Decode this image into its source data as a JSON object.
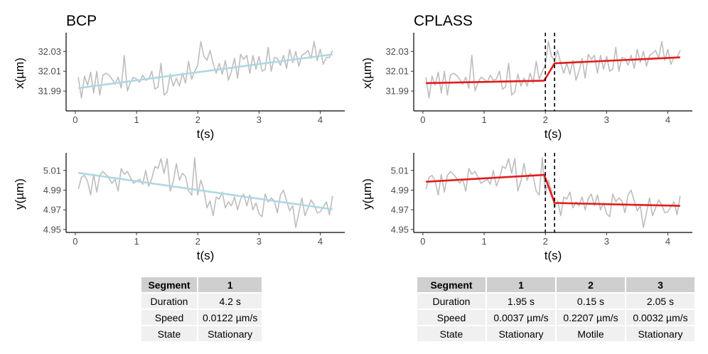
{
  "chart_data": [
    {
      "type": "line",
      "panel": "BCP",
      "title": "BCP",
      "xlabel": "t(s)",
      "ylabel": "x(µm)",
      "xlim": [
        -0.15,
        4.4
      ],
      "ylim": [
        31.97,
        32.046
      ],
      "xticks": [
        "0",
        "1",
        "2",
        "3",
        "4"
      ],
      "yticks": [
        "31.99",
        "32.01",
        "32.03"
      ],
      "series": [
        {
          "name": "trajectory",
          "color": "#bdbdbd",
          "x": [
            0.05,
            0.1,
            0.15,
            0.2,
            0.25,
            0.3,
            0.35,
            0.4,
            0.45,
            0.5,
            0.55,
            0.6,
            0.65,
            0.7,
            0.75,
            0.8,
            0.85,
            0.9,
            0.95,
            1.0,
            1.05,
            1.1,
            1.15,
            1.2,
            1.25,
            1.3,
            1.35,
            1.4,
            1.45,
            1.5,
            1.55,
            1.6,
            1.65,
            1.7,
            1.75,
            1.8,
            1.85,
            1.9,
            1.95,
            2.0,
            2.05,
            2.1,
            2.15,
            2.2,
            2.25,
            2.3,
            2.35,
            2.4,
            2.45,
            2.5,
            2.55,
            2.6,
            2.65,
            2.7,
            2.75,
            2.8,
            2.85,
            2.9,
            2.95,
            3.0,
            3.05,
            3.1,
            3.15,
            3.2,
            3.25,
            3.3,
            3.35,
            3.4,
            3.45,
            3.5,
            3.55,
            3.6,
            3.65,
            3.7,
            3.75,
            3.8,
            3.85,
            3.9,
            3.95,
            4.0,
            4.05,
            4.1,
            4.15,
            4.2
          ],
          "y": [
            32.004,
            31.983,
            32.005,
            31.996,
            32.009,
            31.988,
            32.01,
            31.986,
            32.006,
            32.008,
            32.006,
            32.002,
            31.997,
            32.004,
            31.993,
            32.026,
            31.99,
            31.999,
            32.004,
            32.002,
            31.999,
            32.006,
            32.001,
            32.002,
            32.01,
            31.992,
            31.994,
            32.018,
            31.986,
            31.989,
            32.007,
            31.995,
            32.003,
            31.995,
            32.008,
            31.998,
            32.02,
            32.002,
            32.01,
            32.016,
            32.04,
            32.025,
            32.021,
            32.031,
            32.018,
            32.008,
            32.018,
            32.007,
            32.021,
            32.001,
            32.01,
            32.023,
            32.003,
            32.027,
            32.022,
            32.026,
            32.008,
            32.026,
            32.012,
            32.025,
            32.01,
            32.012,
            32.034,
            32.01,
            32.024,
            32.023,
            32.016,
            32.026,
            32.013,
            32.032,
            32.019,
            32.03,
            32.015,
            32.026,
            32.028,
            32.031,
            32.023,
            32.04,
            32.021,
            32.032,
            32.017,
            32.024,
            32.024,
            32.031
          ]
        },
        {
          "name": "fit",
          "color": "#add8e6",
          "x": [
            0.05,
            4.2
          ],
          "y": [
            31.993,
            32.027
          ]
        }
      ],
      "changepoints": []
    },
    {
      "type": "line",
      "panel": "BCP",
      "xlabel": "t(s)",
      "ylabel": "y(µm)",
      "xlim": [
        -0.15,
        4.4
      ],
      "ylim": [
        4.947,
        5.025
      ],
      "xticks": [
        "0",
        "1",
        "2",
        "3",
        "4"
      ],
      "yticks": [
        "4.95",
        "4.97",
        "4.99",
        "5.01"
      ],
      "series": [
        {
          "name": "trajectory",
          "color": "#bdbdbd",
          "x": [
            0.05,
            0.1,
            0.15,
            0.2,
            0.25,
            0.3,
            0.35,
            0.4,
            0.45,
            0.5,
            0.55,
            0.6,
            0.65,
            0.7,
            0.75,
            0.8,
            0.85,
            0.9,
            0.95,
            1.0,
            1.05,
            1.1,
            1.15,
            1.2,
            1.25,
            1.3,
            1.35,
            1.4,
            1.45,
            1.5,
            1.55,
            1.6,
            1.65,
            1.7,
            1.75,
            1.8,
            1.85,
            1.9,
            1.95,
            2.0,
            2.05,
            2.1,
            2.15,
            2.2,
            2.25,
            2.3,
            2.35,
            2.4,
            2.45,
            2.5,
            2.55,
            2.6,
            2.65,
            2.7,
            2.75,
            2.8,
            2.85,
            2.9,
            2.95,
            3.0,
            3.05,
            3.1,
            3.15,
            3.2,
            3.25,
            3.3,
            3.35,
            3.4,
            3.45,
            3.5,
            3.55,
            3.6,
            3.65,
            3.7,
            3.75,
            3.8,
            3.85,
            3.9,
            3.95,
            4.0,
            4.05,
            4.1,
            4.15,
            4.2
          ],
          "y": [
            4.991,
            5.003,
            5.005,
            4.999,
            4.985,
            5.006,
            4.988,
            5.005,
            5.009,
            5.006,
            5.002,
            4.997,
            5.001,
            4.989,
            5.012,
            5.006,
            5.009,
            5.003,
            4.997,
            4.999,
            5.001,
            4.996,
            5.01,
            4.994,
            5.002,
            5.014,
            5.012,
            5.022,
            5.007,
            5.022,
            4.989,
            4.999,
            5.017,
            5.0,
            5.007,
            5.004,
            4.989,
            4.985,
            5.023,
            4.985,
            5.0,
            4.99,
            4.972,
            4.979,
            4.964,
            4.983,
            4.981,
            4.988,
            4.972,
            4.978,
            4.974,
            4.983,
            4.97,
            4.981,
            4.986,
            4.974,
            4.985,
            4.97,
            4.977,
            4.966,
            4.963,
            4.986,
            4.978,
            4.982,
            4.979,
            4.967,
            4.985,
            4.99,
            4.979,
            4.969,
            4.974,
            4.952,
            4.967,
            4.982,
            4.964,
            4.972,
            4.98,
            4.975,
            4.967,
            4.968,
            4.973,
            4.978,
            4.965,
            4.984
          ]
        },
        {
          "name": "fit",
          "color": "#add8e6",
          "x": [
            0.05,
            4.2
          ],
          "y": [
            5.0075,
            4.9705
          ]
        }
      ],
      "changepoints": []
    },
    {
      "type": "line",
      "panel": "CPLASS",
      "title": "CPLASS",
      "xlabel": "t(s)",
      "ylabel": "x(µm)",
      "xlim": [
        -0.15,
        4.4
      ],
      "ylim": [
        31.97,
        32.046
      ],
      "xticks": [
        "0",
        "1",
        "2",
        "3",
        "4"
      ],
      "yticks": [
        "31.99",
        "32.01",
        "32.03"
      ],
      "series": [
        {
          "name": "trajectory",
          "color": "#bdbdbd",
          "x": [
            0.05,
            0.1,
            0.15,
            0.2,
            0.25,
            0.3,
            0.35,
            0.4,
            0.45,
            0.5,
            0.55,
            0.6,
            0.65,
            0.7,
            0.75,
            0.8,
            0.85,
            0.9,
            0.95,
            1.0,
            1.05,
            1.1,
            1.15,
            1.2,
            1.25,
            1.3,
            1.35,
            1.4,
            1.45,
            1.5,
            1.55,
            1.6,
            1.65,
            1.7,
            1.75,
            1.8,
            1.85,
            1.9,
            1.95,
            2.0,
            2.05,
            2.1,
            2.15,
            2.2,
            2.25,
            2.3,
            2.35,
            2.4,
            2.45,
            2.5,
            2.55,
            2.6,
            2.65,
            2.7,
            2.75,
            2.8,
            2.85,
            2.9,
            2.95,
            3.0,
            3.05,
            3.1,
            3.15,
            3.2,
            3.25,
            3.3,
            3.35,
            3.4,
            3.45,
            3.5,
            3.55,
            3.6,
            3.65,
            3.7,
            3.75,
            3.8,
            3.85,
            3.9,
            3.95,
            4.0,
            4.05,
            4.1,
            4.15,
            4.2
          ],
          "y": [
            32.004,
            31.983,
            32.005,
            31.996,
            32.009,
            31.988,
            32.01,
            31.986,
            32.006,
            32.008,
            32.006,
            32.002,
            31.997,
            32.004,
            31.993,
            32.026,
            31.99,
            31.999,
            32.004,
            32.002,
            31.999,
            32.006,
            32.001,
            32.002,
            32.01,
            31.992,
            31.994,
            32.018,
            31.986,
            31.989,
            32.007,
            31.995,
            32.003,
            31.995,
            32.008,
            31.998,
            32.02,
            32.002,
            32.01,
            32.016,
            32.04,
            32.025,
            32.021,
            32.031,
            32.018,
            32.008,
            32.018,
            32.007,
            32.021,
            32.001,
            32.01,
            32.023,
            32.003,
            32.027,
            32.022,
            32.026,
            32.008,
            32.026,
            32.012,
            32.025,
            32.01,
            32.012,
            32.034,
            32.01,
            32.024,
            32.023,
            32.016,
            32.026,
            32.013,
            32.032,
            32.019,
            32.03,
            32.015,
            32.026,
            32.028,
            32.031,
            32.023,
            32.04,
            32.021,
            32.032,
            32.017,
            32.024,
            32.024,
            32.031
          ]
        },
        {
          "name": "fit",
          "color": "#e41a1c",
          "x": [
            0.05,
            1.98,
            2.15,
            4.2
          ],
          "y": [
            31.998,
            32.0005,
            32.018,
            32.024
          ]
        }
      ],
      "changepoints": [
        2.0,
        2.15
      ]
    },
    {
      "type": "line",
      "panel": "CPLASS",
      "xlabel": "t(s)",
      "ylabel": "y(µm)",
      "xlim": [
        -0.15,
        4.4
      ],
      "ylim": [
        4.947,
        5.025
      ],
      "xticks": [
        "0",
        "1",
        "2",
        "3",
        "4"
      ],
      "yticks": [
        "4.95",
        "4.97",
        "4.99",
        "5.01"
      ],
      "series": [
        {
          "name": "trajectory",
          "color": "#bdbdbd",
          "x": [
            0.05,
            0.1,
            0.15,
            0.2,
            0.25,
            0.3,
            0.35,
            0.4,
            0.45,
            0.5,
            0.55,
            0.6,
            0.65,
            0.7,
            0.75,
            0.8,
            0.85,
            0.9,
            0.95,
            1.0,
            1.05,
            1.1,
            1.15,
            1.2,
            1.25,
            1.3,
            1.35,
            1.4,
            1.45,
            1.5,
            1.55,
            1.6,
            1.65,
            1.7,
            1.75,
            1.8,
            1.85,
            1.9,
            1.95,
            2.0,
            2.05,
            2.1,
            2.15,
            2.2,
            2.25,
            2.3,
            2.35,
            2.4,
            2.45,
            2.5,
            2.55,
            2.6,
            2.65,
            2.7,
            2.75,
            2.8,
            2.85,
            2.9,
            2.95,
            3.0,
            3.05,
            3.1,
            3.15,
            3.2,
            3.25,
            3.3,
            3.35,
            3.4,
            3.45,
            3.5,
            3.55,
            3.6,
            3.65,
            3.7,
            3.75,
            3.8,
            3.85,
            3.9,
            3.95,
            4.0,
            4.05,
            4.1,
            4.15,
            4.2
          ],
          "y": [
            4.991,
            5.003,
            5.005,
            4.999,
            4.985,
            5.006,
            4.988,
            5.005,
            5.009,
            5.006,
            5.002,
            4.997,
            5.001,
            4.989,
            5.012,
            5.006,
            5.009,
            5.003,
            4.997,
            4.999,
            5.001,
            4.996,
            5.01,
            4.994,
            5.002,
            5.014,
            5.012,
            5.022,
            5.007,
            5.022,
            4.989,
            4.999,
            5.017,
            5.0,
            5.007,
            5.004,
            4.989,
            4.985,
            5.023,
            4.985,
            5.0,
            4.99,
            4.972,
            4.979,
            4.964,
            4.983,
            4.981,
            4.988,
            4.972,
            4.978,
            4.974,
            4.983,
            4.97,
            4.981,
            4.986,
            4.974,
            4.985,
            4.97,
            4.977,
            4.966,
            4.963,
            4.986,
            4.978,
            4.982,
            4.979,
            4.967,
            4.985,
            4.99,
            4.979,
            4.969,
            4.974,
            4.952,
            4.967,
            4.982,
            4.964,
            4.972,
            4.98,
            4.975,
            4.967,
            4.968,
            4.973,
            4.978,
            4.965,
            4.984
          ]
        },
        {
          "name": "fit",
          "color": "#e41a1c",
          "x": [
            0.05,
            1.98,
            2.15,
            4.2
          ],
          "y": [
            4.9985,
            5.0055,
            4.977,
            4.974
          ]
        }
      ],
      "changepoints": [
        2.0,
        2.15
      ]
    }
  ],
  "tables": {
    "bcp": {
      "headers": [
        "Segment",
        "1"
      ],
      "rows": [
        [
          "Duration",
          "4.2 s"
        ],
        [
          "Speed",
          "0.0122 µm/s"
        ],
        [
          "State",
          "Stationary"
        ]
      ]
    },
    "cplass": {
      "headers": [
        "Segment",
        "1",
        "2",
        "3"
      ],
      "rows": [
        [
          "Duration",
          "1.95 s",
          "0.15 s",
          "2.05 s"
        ],
        [
          "Speed",
          "0.0037 µm/s",
          "0.2207 µm/s",
          "0.0032 µm/s"
        ],
        [
          "State",
          "Stationary",
          "Motile",
          "Stationary"
        ]
      ]
    }
  }
}
